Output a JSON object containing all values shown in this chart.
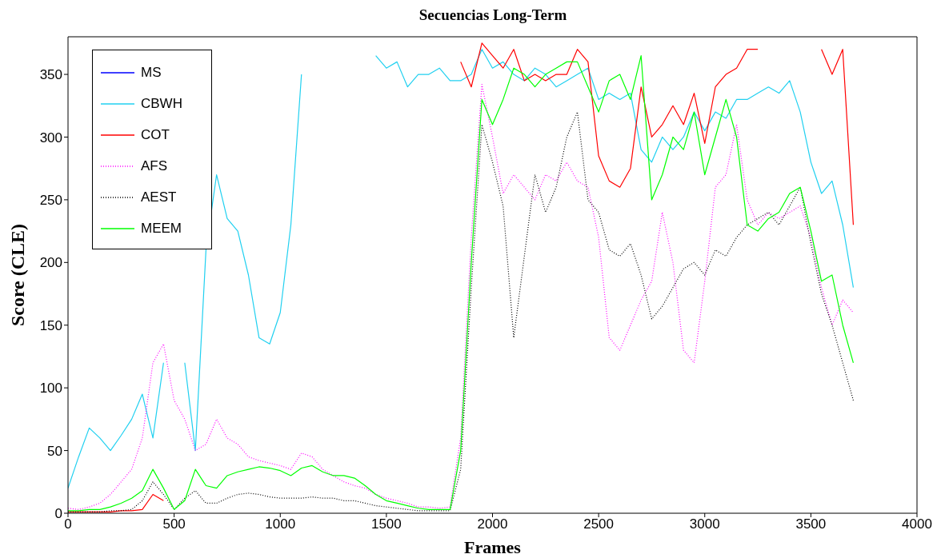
{
  "chart_data": {
    "type": "line",
    "title": "Secuencias Long-Term",
    "xlabel": "Frames",
    "ylabel": "Score (CLE)",
    "x": [
      0,
      50,
      100,
      150,
      200,
      250,
      300,
      350,
      400,
      450,
      500,
      550,
      600,
      650,
      700,
      750,
      800,
      850,
      900,
      950,
      1000,
      1050,
      1100,
      1150,
      1200,
      1250,
      1300,
      1350,
      1400,
      1450,
      1500,
      1550,
      1600,
      1650,
      1700,
      1750,
      1800,
      1850,
      1900,
      1950,
      2000,
      2050,
      2100,
      2150,
      2200,
      2250,
      2300,
      2350,
      2400,
      2450,
      2500,
      2550,
      2600,
      2650,
      2700,
      2750,
      2800,
      2850,
      2900,
      2950,
      3000,
      3050,
      3100,
      3150,
      3200,
      3250,
      3300,
      3350,
      3400,
      3450,
      3500,
      3550,
      3600,
      3650,
      3700
    ],
    "xlim": [
      0,
      4000
    ],
    "xticks": [
      0,
      500,
      1000,
      1500,
      2000,
      2500,
      3000,
      3500,
      4000
    ],
    "ylim": [
      0,
      380
    ],
    "yticks": [
      0,
      50,
      100,
      150,
      200,
      250,
      300,
      350
    ],
    "legend": "top left",
    "grid": false,
    "marker": "none",
    "series": [
      {
        "name": "MS",
        "color": "#0000ff",
        "values": [
          null,
          null,
          null,
          null,
          null,
          null,
          null,
          null,
          null,
          null,
          null,
          null,
          null,
          null,
          null,
          null,
          null,
          null,
          null,
          null,
          null,
          null,
          null,
          null,
          null,
          null,
          null,
          null,
          null,
          null,
          null,
          null,
          null,
          null,
          null,
          null,
          null,
          null,
          null,
          null,
          null,
          null,
          null,
          null,
          null,
          null,
          null,
          null,
          null,
          null,
          null,
          null,
          null,
          null,
          null,
          null,
          null,
          null,
          null,
          null,
          null,
          null,
          null,
          null,
          null,
          null,
          null,
          null,
          null,
          null,
          null,
          null,
          null,
          null,
          null
        ]
      },
      {
        "name": "CBWH",
        "color": "#20d0f0",
        "values": [
          20,
          45,
          68,
          60,
          50,
          62,
          75,
          95,
          60,
          120,
          null,
          120,
          50,
          210,
          270,
          235,
          225,
          190,
          140,
          135,
          160,
          230,
          350,
          null,
          null,
          null,
          null,
          null,
          null,
          365,
          355,
          360,
          340,
          350,
          350,
          355,
          345,
          345,
          350,
          370,
          355,
          360,
          350,
          345,
          355,
          350,
          340,
          345,
          350,
          355,
          330,
          335,
          330,
          335,
          290,
          280,
          300,
          290,
          300,
          320,
          305,
          320,
          315,
          330,
          330,
          335,
          340,
          335,
          345,
          320,
          280,
          255,
          265,
          230,
          180
        ]
      },
      {
        "name": "COT",
        "color": "#ff0000",
        "values": [
          1,
          1,
          1,
          1,
          1,
          2,
          2,
          3,
          15,
          10,
          null,
          null,
          null,
          null,
          null,
          null,
          null,
          null,
          null,
          null,
          null,
          null,
          null,
          null,
          null,
          null,
          null,
          null,
          null,
          null,
          null,
          null,
          null,
          null,
          null,
          null,
          null,
          360,
          340,
          375,
          365,
          355,
          370,
          345,
          350,
          345,
          350,
          350,
          370,
          360,
          285,
          265,
          260,
          275,
          340,
          300,
          310,
          325,
          310,
          335,
          295,
          340,
          350,
          355,
          370,
          370,
          null,
          null,
          null,
          null,
          null,
          370,
          350,
          370,
          230
        ]
      },
      {
        "name": "AFS",
        "color": "#ff00ff",
        "line_style": "dotted",
        "values": [
          4,
          3,
          5,
          8,
          15,
          25,
          35,
          60,
          120,
          135,
          90,
          75,
          50,
          55,
          75,
          60,
          55,
          45,
          42,
          40,
          38,
          35,
          48,
          45,
          35,
          30,
          25,
          22,
          20,
          15,
          12,
          10,
          8,
          5,
          5,
          4,
          5,
          60,
          220,
          342,
          300,
          255,
          270,
          260,
          250,
          270,
          265,
          280,
          265,
          260,
          220,
          140,
          130,
          150,
          170,
          185,
          240,
          200,
          130,
          120,
          185,
          260,
          270,
          310,
          250,
          230,
          240,
          235,
          240,
          245,
          220,
          180,
          150,
          170,
          160
        ]
      },
      {
        "name": "AEST",
        "color": "#000000",
        "line_style": "dotted",
        "values": [
          1,
          1,
          1,
          1,
          2,
          2,
          3,
          10,
          25,
          15,
          3,
          12,
          18,
          8,
          8,
          12,
          15,
          16,
          15,
          13,
          12,
          12,
          12,
          13,
          12,
          12,
          10,
          10,
          8,
          6,
          5,
          4,
          3,
          2,
          2,
          2,
          2,
          35,
          180,
          310,
          280,
          245,
          140,
          205,
          270,
          240,
          260,
          300,
          320,
          250,
          240,
          210,
          205,
          215,
          190,
          155,
          165,
          180,
          195,
          200,
          190,
          210,
          205,
          220,
          230,
          235,
          240,
          230,
          245,
          260,
          215,
          175,
          150,
          120,
          90
        ]
      },
      {
        "name": "MEEM",
        "color": "#00ff00",
        "values": [
          2,
          2,
          3,
          3,
          5,
          8,
          12,
          18,
          35,
          20,
          3,
          10,
          35,
          22,
          20,
          30,
          33,
          35,
          37,
          36,
          34,
          30,
          36,
          38,
          33,
          30,
          30,
          28,
          22,
          15,
          10,
          8,
          6,
          4,
          3,
          3,
          3,
          50,
          200,
          330,
          310,
          330,
          355,
          350,
          340,
          350,
          355,
          360,
          360,
          340,
          320,
          345,
          350,
          330,
          365,
          250,
          270,
          300,
          290,
          320,
          270,
          300,
          330,
          300,
          230,
          225,
          235,
          240,
          255,
          260,
          225,
          185,
          190,
          150,
          120
        ]
      }
    ]
  }
}
